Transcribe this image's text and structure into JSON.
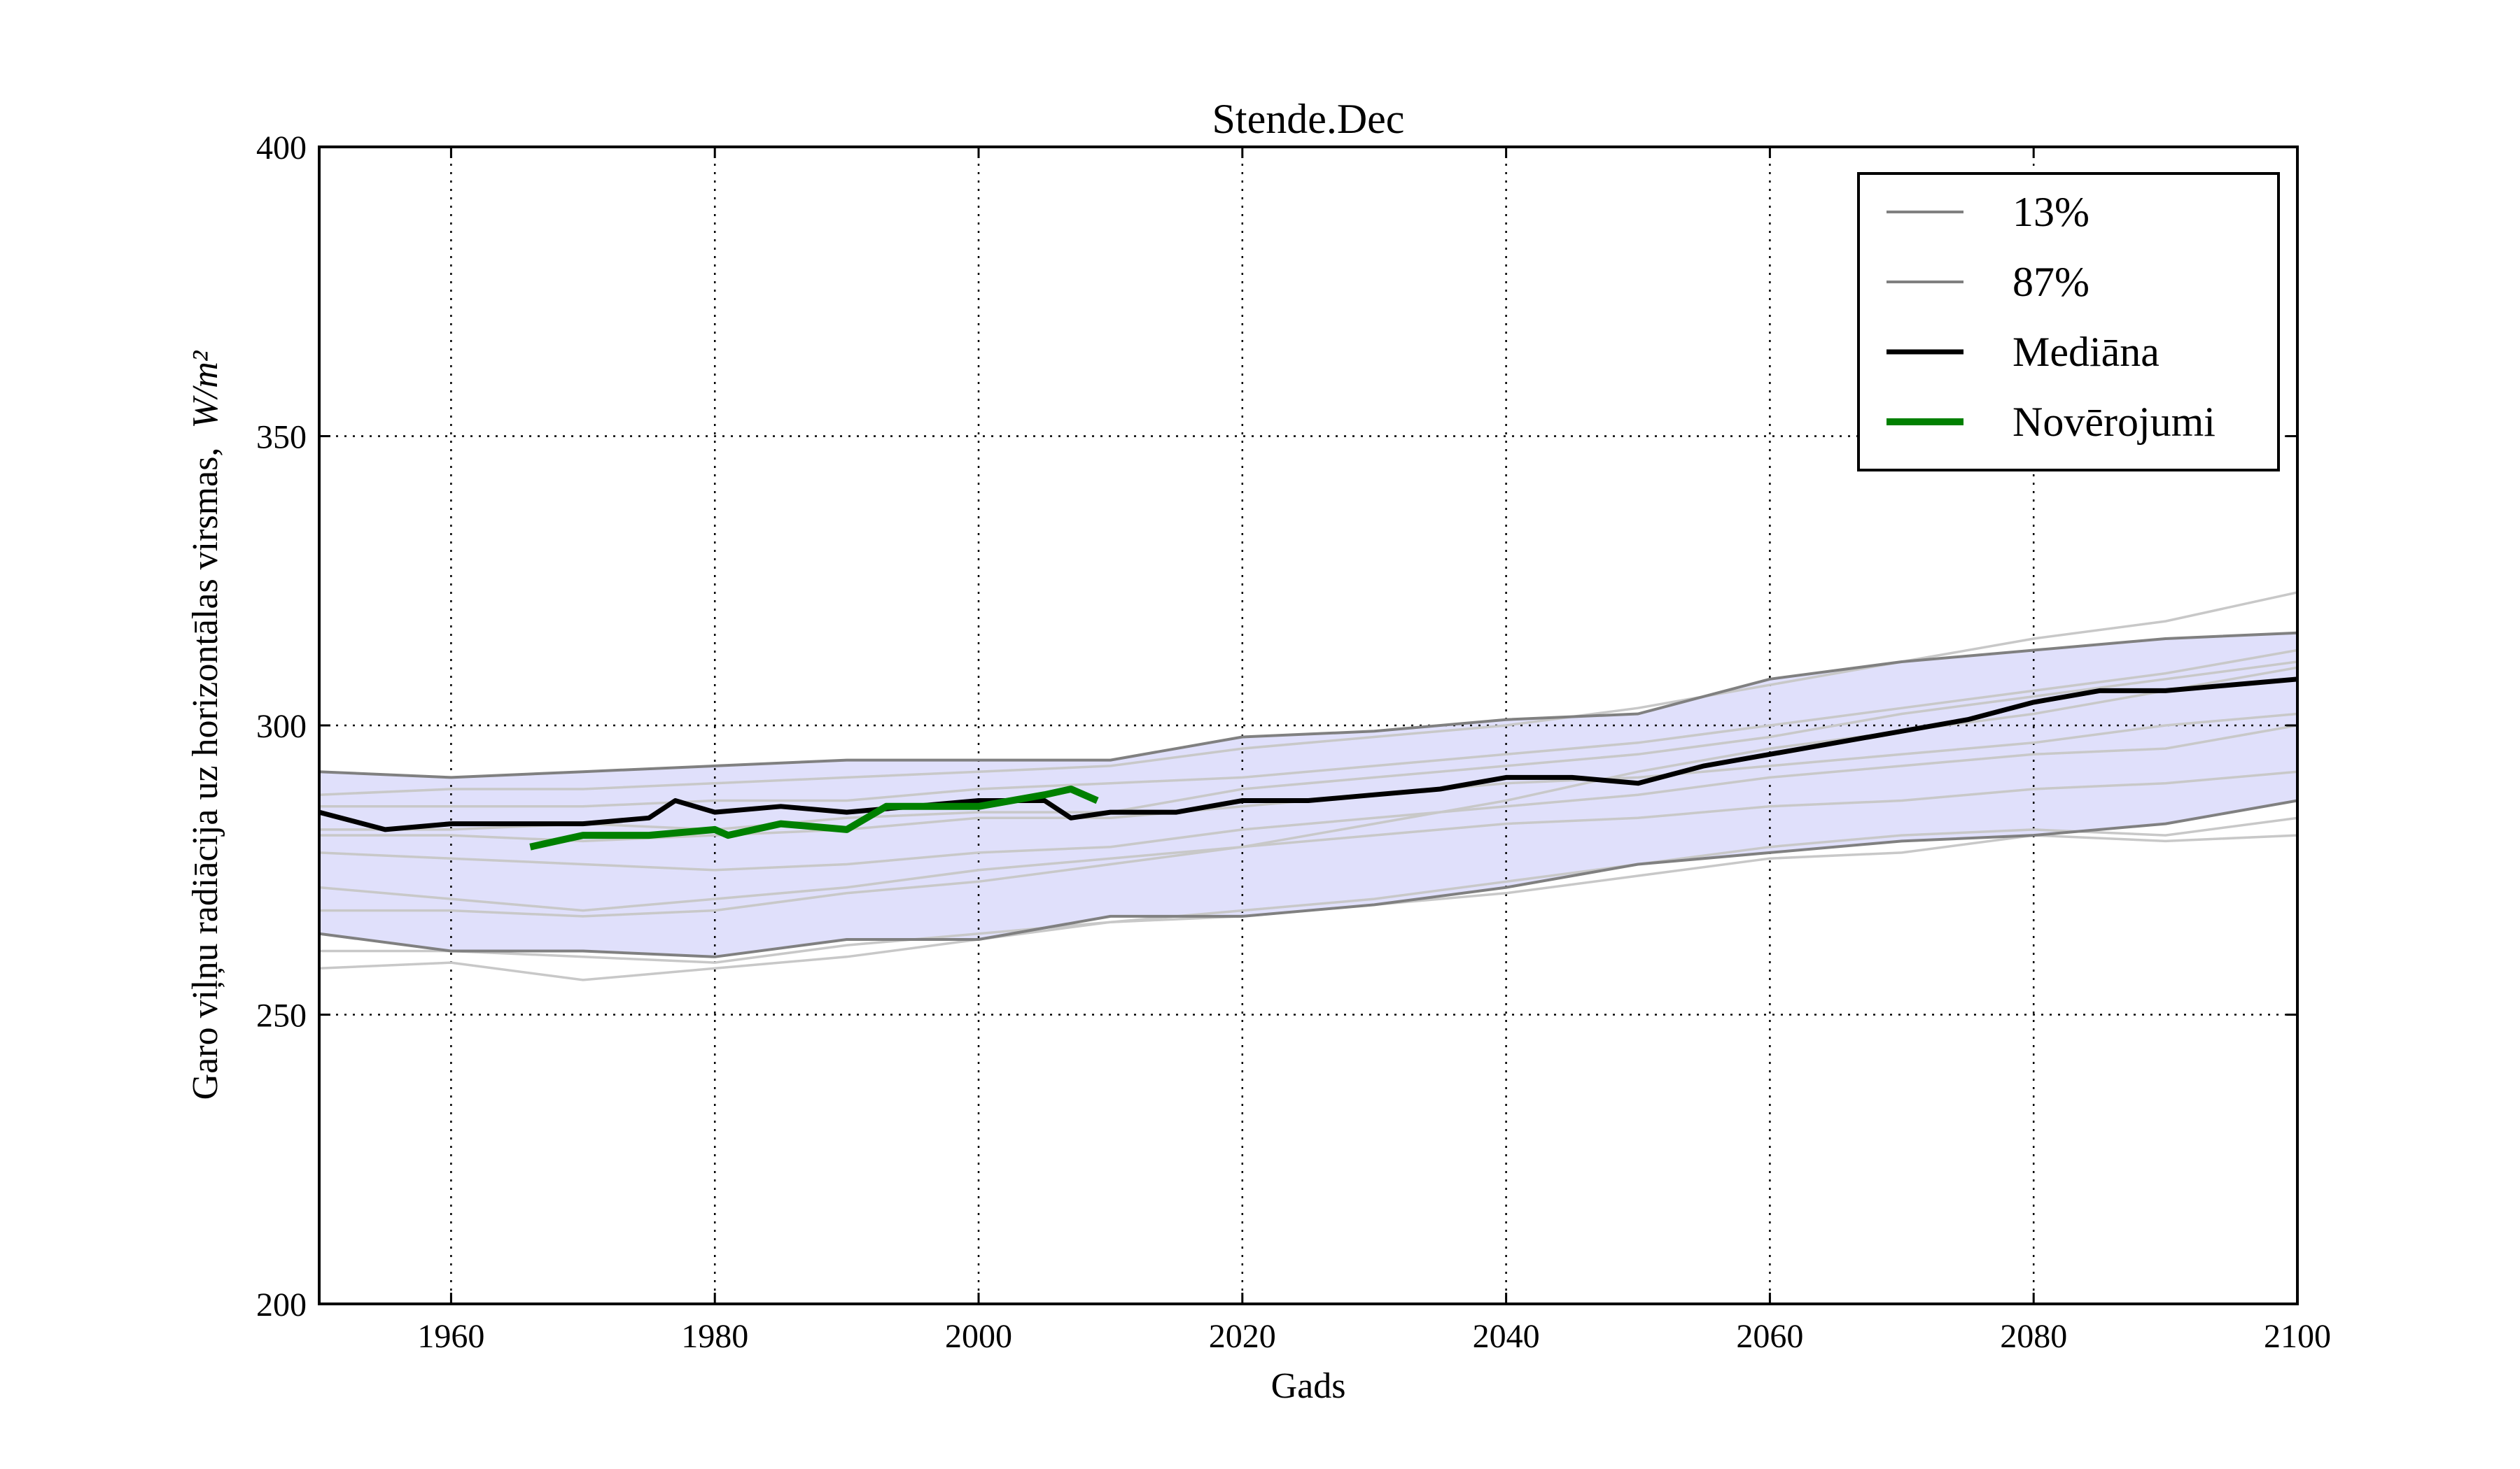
{
  "chart_data": {
    "type": "line",
    "title": "Stende.Dec",
    "xlabel": "Gads",
    "ylabel": "Garo viļņu radiācija uz horizontālas virsmas,",
    "ylabel_unit": "W/m²",
    "xlim": [
      1950,
      2100
    ],
    "ylim": [
      200,
      400
    ],
    "xticks": [
      1960,
      1980,
      2000,
      2020,
      2040,
      2060,
      2080,
      2100
    ],
    "yticks": [
      200,
      250,
      300,
      350,
      400
    ],
    "grid": true,
    "legend_position": "top-right",
    "band": {
      "fill_color": "#e0e0fb",
      "x": [
        1950,
        1960,
        1970,
        1980,
        1990,
        2000,
        2010,
        2020,
        2030,
        2040,
        2050,
        2060,
        2070,
        2080,
        2090,
        2100
      ],
      "lower": [
        264,
        261,
        261,
        260,
        263,
        263,
        267,
        267,
        269,
        272,
        276,
        278,
        280,
        281,
        283,
        287
      ],
      "upper": [
        292,
        291,
        292,
        293,
        294,
        294,
        294,
        298,
        299,
        301,
        302,
        308,
        311,
        313,
        315,
        316
      ]
    },
    "series": [
      {
        "name": "13%",
        "style": "gray-thin",
        "color": "#808080",
        "x": [
          1950,
          1960,
          1970,
          1980,
          1990,
          2000,
          2010,
          2020,
          2030,
          2040,
          2050,
          2060,
          2070,
          2080,
          2090,
          2100
        ],
        "values": [
          264,
          261,
          261,
          260,
          263,
          263,
          267,
          267,
          269,
          272,
          276,
          278,
          280,
          281,
          283,
          287
        ]
      },
      {
        "name": "87%",
        "style": "gray-thin",
        "color": "#808080",
        "x": [
          1950,
          1960,
          1970,
          1980,
          1990,
          2000,
          2010,
          2020,
          2030,
          2040,
          2050,
          2060,
          2070,
          2080,
          2090,
          2100
        ],
        "values": [
          292,
          291,
          292,
          293,
          294,
          294,
          294,
          298,
          299,
          301,
          302,
          308,
          311,
          313,
          315,
          316
        ]
      },
      {
        "name": "Mediāna",
        "style": "median",
        "color": "#000000",
        "x": [
          1950,
          1955,
          1960,
          1965,
          1970,
          1975,
          1977,
          1980,
          1985,
          1990,
          1995,
          2000,
          2005,
          2007,
          2010,
          2015,
          2020,
          2025,
          2030,
          2035,
          2040,
          2045,
          2050,
          2055,
          2060,
          2065,
          2070,
          2075,
          2080,
          2085,
          2090,
          2095,
          2100
        ],
        "values": [
          285,
          282,
          283,
          283,
          283,
          284,
          287,
          285,
          286,
          285,
          286,
          287,
          287,
          284,
          285,
          285,
          287,
          287,
          288,
          289,
          291,
          291,
          290,
          293,
          295,
          297,
          299,
          301,
          304,
          306,
          306,
          307,
          308
        ]
      },
      {
        "name": "Novērojumi",
        "style": "observed",
        "color": "#008000",
        "x": [
          1966,
          1968,
          1970,
          1975,
          1980,
          1981,
          1985,
          1990,
          1993,
          1995,
          2000,
          2005,
          2007,
          2009
        ],
        "values": [
          279,
          280,
          281,
          281,
          282,
          281,
          283,
          282,
          286,
          286,
          286,
          288,
          289,
          287
        ]
      }
    ],
    "members": [
      {
        "color": "#c8c8c8",
        "x": [
          1950,
          1960,
          1970,
          1980,
          1990,
          2000,
          2010,
          2020,
          2030,
          2040,
          2050,
          2060,
          2070,
          2080,
          2090,
          2100
        ],
        "values": [
          258,
          259,
          256,
          258,
          260,
          263,
          266,
          267,
          269,
          271,
          274,
          277,
          278,
          281,
          280,
          281
        ]
      },
      {
        "color": "#c8c8c8",
        "x": [
          1950,
          1960,
          1970,
          1980,
          1990,
          2000,
          2010,
          2020,
          2030,
          2040,
          2050,
          2060,
          2070,
          2080,
          2090,
          2100
        ],
        "values": [
          268,
          268,
          267,
          268,
          271,
          273,
          276,
          279,
          283,
          287,
          292,
          296,
          299,
          302,
          306,
          310
        ]
      },
      {
        "color": "#c8c8c8",
        "x": [
          1950,
          1960,
          1970,
          1980,
          1990,
          2000,
          2010,
          2020,
          2030,
          2040,
          2050,
          2060,
          2070,
          2080,
          2090,
          2100
        ],
        "values": [
          282,
          282,
          283,
          282,
          284,
          285,
          285,
          289,
          291,
          293,
          295,
          298,
          302,
          305,
          308,
          311
        ]
      },
      {
        "color": "#c8c8c8",
        "x": [
          1950,
          1960,
          1970,
          1980,
          1990,
          2000,
          2010,
          2020,
          2030,
          2040,
          2050,
          2060,
          2070,
          2080,
          2090,
          2100
        ],
        "values": [
          288,
          289,
          289,
          290,
          291,
          292,
          293,
          296,
          298,
          300,
          303,
          307,
          311,
          315,
          318,
          323
        ]
      },
      {
        "color": "#c8c8c8",
        "x": [
          1950,
          1960,
          1970,
          1980,
          1990,
          2000,
          2010,
          2020,
          2030,
          2040,
          2050,
          2060,
          2070,
          2080,
          2090,
          2100
        ],
        "values": [
          278,
          277,
          276,
          275,
          276,
          278,
          279,
          282,
          284,
          286,
          288,
          291,
          293,
          295,
          296,
          300
        ]
      },
      {
        "color": "#c8c8c8",
        "x": [
          1950,
          1960,
          1970,
          1980,
          1990,
          2000,
          2010,
          2020,
          2030,
          2040,
          2050,
          2060,
          2070,
          2080,
          2090,
          2100
        ],
        "values": [
          272,
          270,
          268,
          270,
          272,
          275,
          277,
          279,
          281,
          283,
          284,
          286,
          287,
          289,
          290,
          292
        ]
      },
      {
        "color": "#c8c8c8",
        "x": [
          1950,
          1960,
          1970,
          1980,
          1990,
          2000,
          2010,
          2020,
          2030,
          2040,
          2050,
          2060,
          2070,
          2080,
          2090,
          2100
        ],
        "values": [
          281,
          281,
          280,
          281,
          282,
          284,
          284,
          286,
          288,
          290,
          291,
          293,
          295,
          297,
          300,
          302
        ]
      },
      {
        "color": "#c8c8c8",
        "x": [
          1950,
          1960,
          1970,
          1980,
          1990,
          2000,
          2010,
          2020,
          2030,
          2040,
          2050,
          2060,
          2070,
          2080,
          2090,
          2100
        ],
        "values": [
          286,
          286,
          286,
          287,
          287,
          289,
          290,
          291,
          293,
          295,
          297,
          300,
          303,
          306,
          309,
          313
        ]
      },
      {
        "color": "#c8c8c8",
        "x": [
          1950,
          1960,
          1970,
          1980,
          1990,
          2000,
          2010,
          2020,
          2030,
          2040,
          2050,
          2060,
          2070,
          2080,
          2090,
          2100
        ],
        "values": [
          261,
          261,
          260,
          259,
          262,
          264,
          266,
          268,
          270,
          273,
          276,
          279,
          281,
          282,
          281,
          284
        ]
      }
    ]
  }
}
